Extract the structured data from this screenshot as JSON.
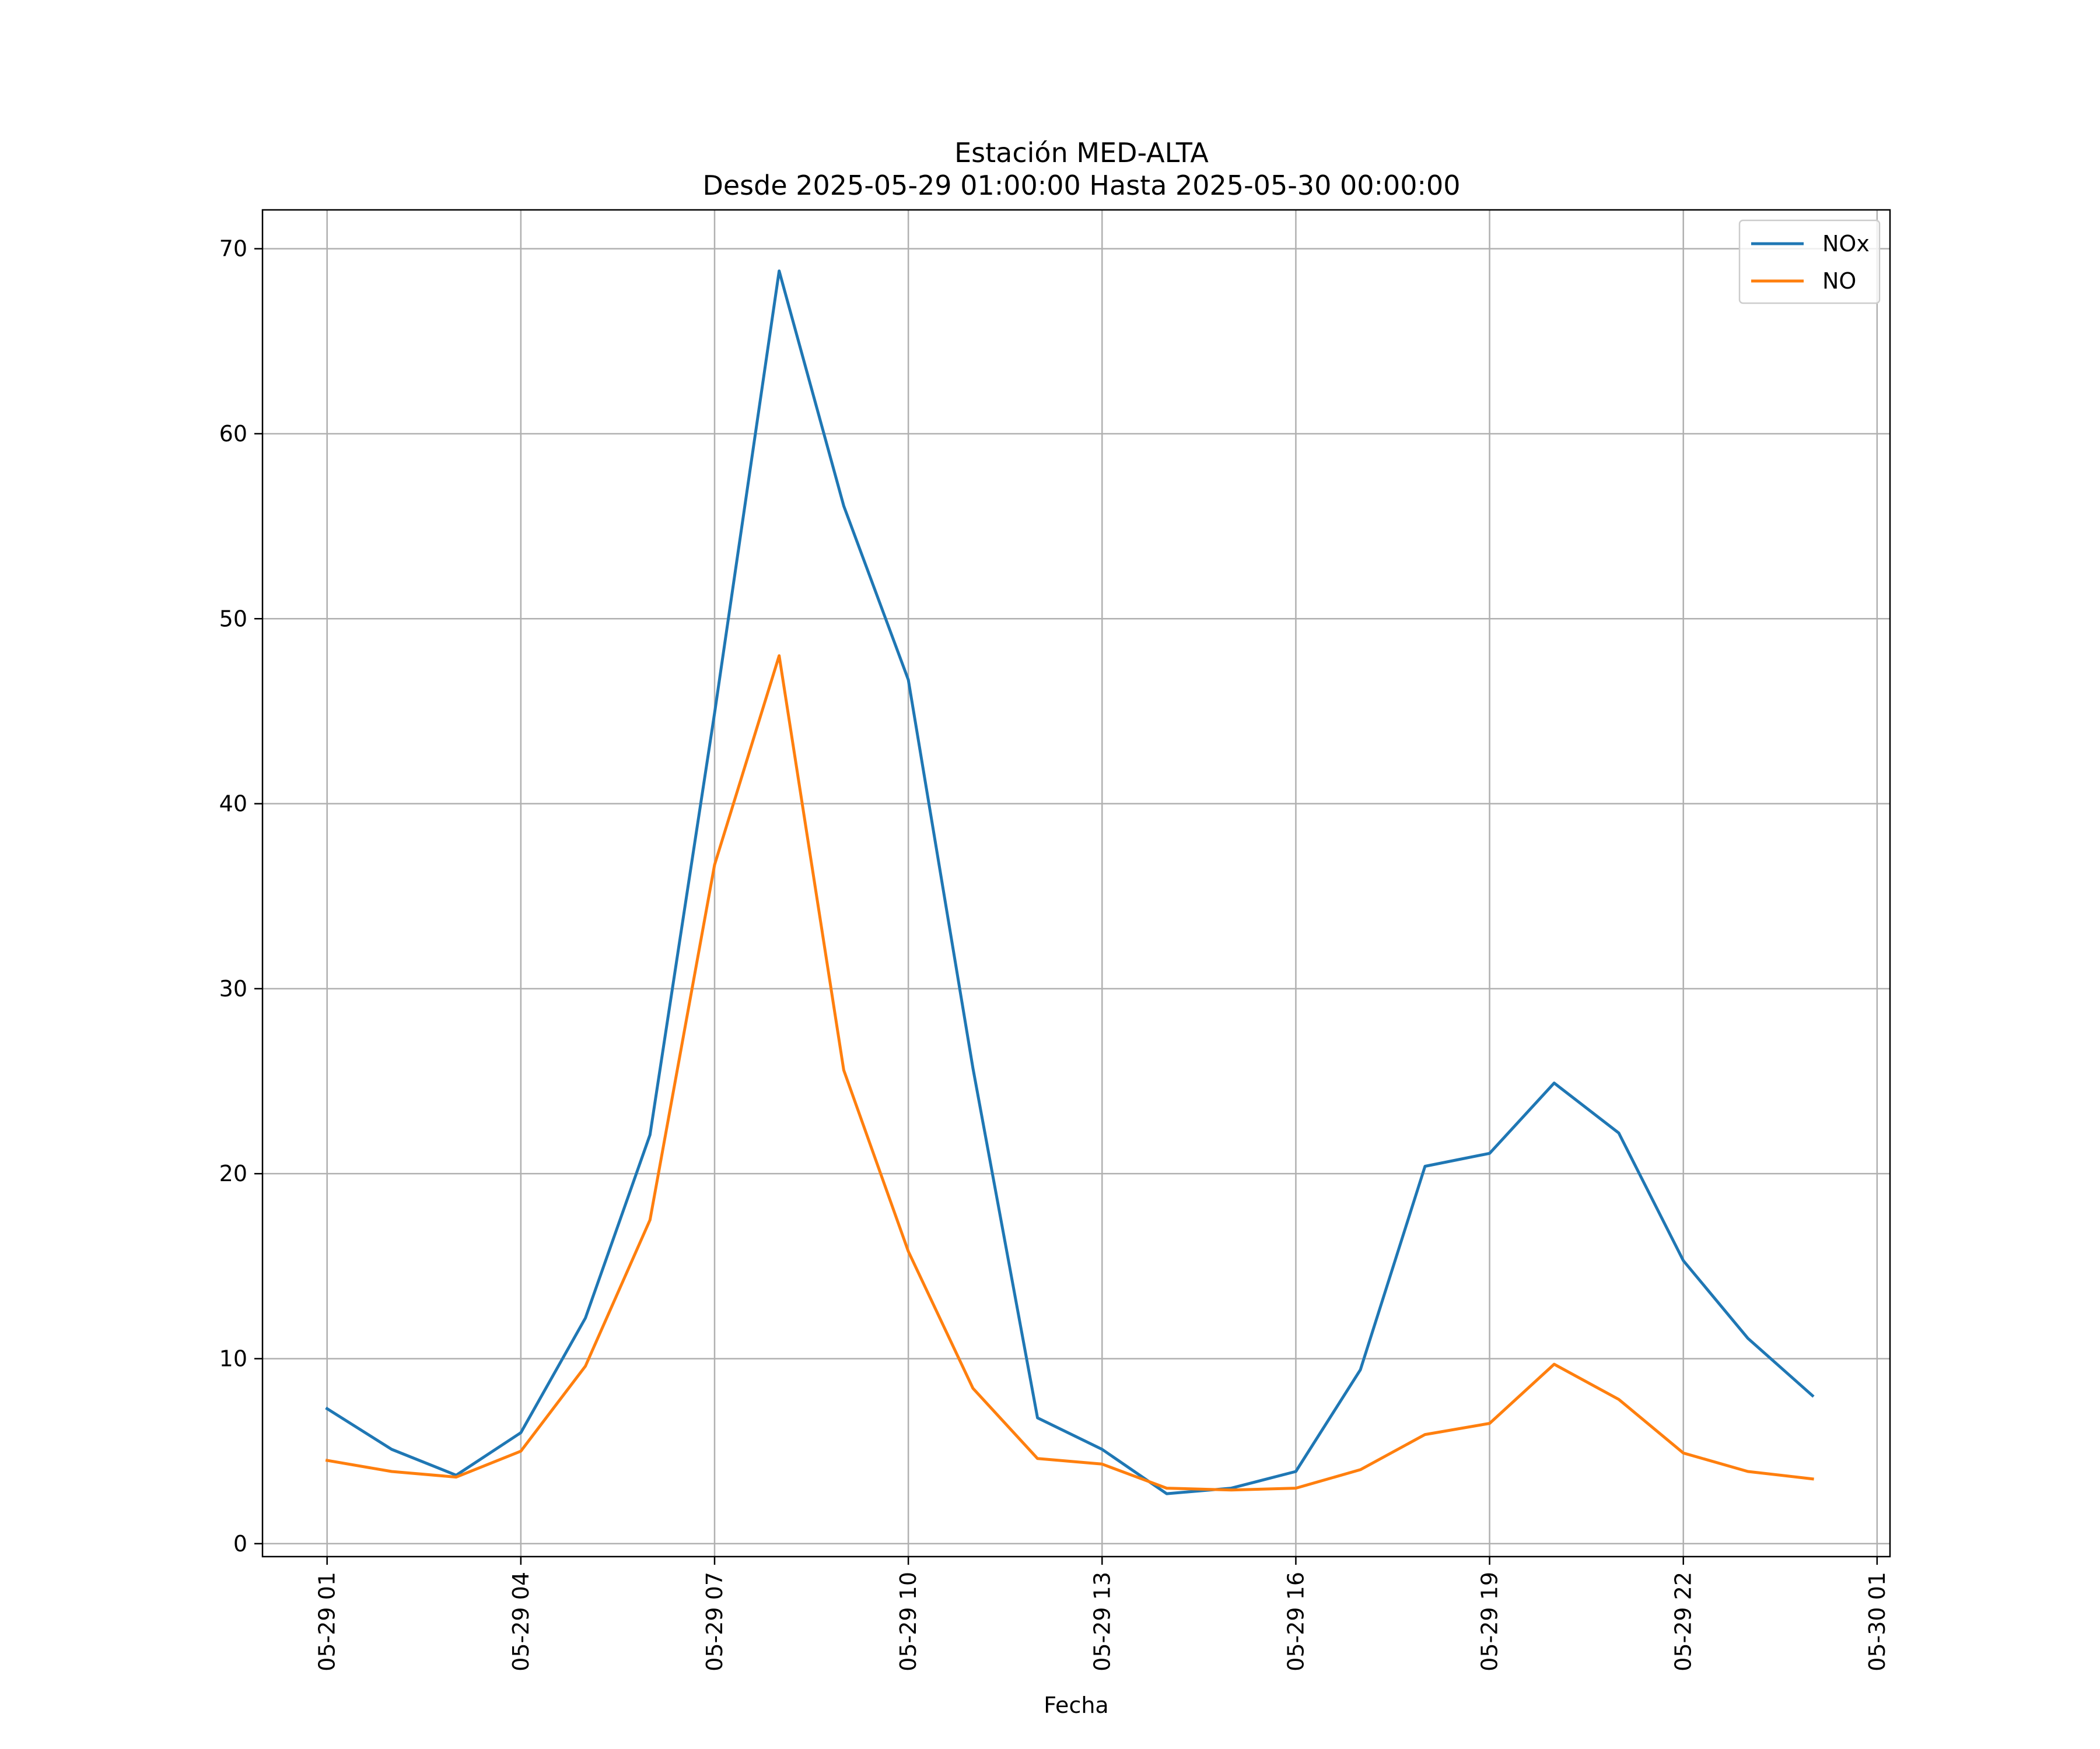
{
  "chart_data": {
    "type": "line",
    "title": "Estación MED-ALTA",
    "subtitle": "Desde 2025-05-29 01:00:00 Hasta 2025-05-30 00:00:00",
    "xlabel": "Fecha",
    "ylabel": "",
    "x": [
      "2025-05-29 01:00",
      "2025-05-29 02:00",
      "2025-05-29 03:00",
      "2025-05-29 04:00",
      "2025-05-29 05:00",
      "2025-05-29 06:00",
      "2025-05-29 07:00",
      "2025-05-29 08:00",
      "2025-05-29 09:00",
      "2025-05-29 10:00",
      "2025-05-29 11:00",
      "2025-05-29 12:00",
      "2025-05-29 13:00",
      "2025-05-29 14:00",
      "2025-05-29 15:00",
      "2025-05-29 16:00",
      "2025-05-29 17:00",
      "2025-05-29 18:00",
      "2025-05-29 19:00",
      "2025-05-29 20:00",
      "2025-05-29 21:00",
      "2025-05-29 22:00",
      "2025-05-29 23:00",
      "2025-05-30 00:00"
    ],
    "x_ticks": [
      "05-29 01",
      "05-29 04",
      "05-29 07",
      "05-29 10",
      "05-29 13",
      "05-29 16",
      "05-29 19",
      "05-29 22",
      "05-30 01"
    ],
    "xlim": [
      "2025-05-29 00:00",
      "2025-05-30 01:12"
    ],
    "y_ticks": [
      0,
      10,
      20,
      30,
      40,
      50,
      60,
      70
    ],
    "ylim": [
      -0.7,
      72.1
    ],
    "grid": true,
    "legend_position": "top-right",
    "series": [
      {
        "name": "NOx",
        "color": "#1f77b4",
        "values": [
          7.3,
          5.1,
          3.7,
          6.0,
          12.2,
          22.1,
          44.9,
          68.8,
          56.1,
          46.7,
          25.7,
          6.8,
          5.1,
          2.7,
          3.0,
          3.9,
          9.4,
          20.4,
          21.1,
          24.9,
          22.2,
          15.3,
          11.1,
          8.0
        ]
      },
      {
        "name": "NO",
        "color": "#ff7f0e",
        "values": [
          4.5,
          3.9,
          3.6,
          5.0,
          9.6,
          17.5,
          36.7,
          48.0,
          25.6,
          15.8,
          8.4,
          4.6,
          4.3,
          3.0,
          2.9,
          3.0,
          4.0,
          5.9,
          6.5,
          9.7,
          7.8,
          4.9,
          3.9,
          3.5
        ]
      }
    ]
  }
}
